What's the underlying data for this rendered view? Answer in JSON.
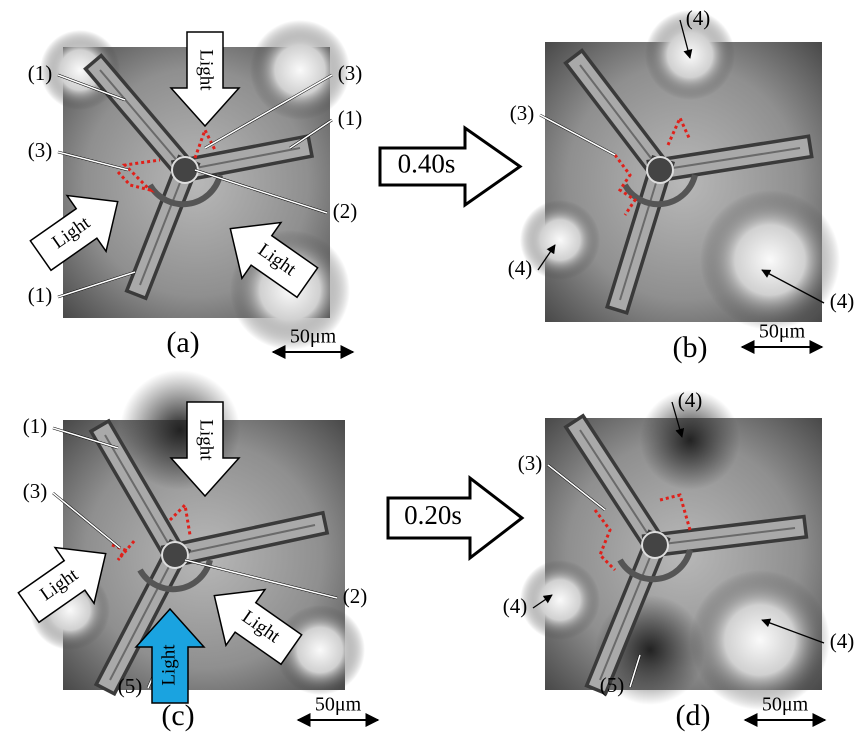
{
  "panels": [
    {
      "label": "(a)",
      "scale_bar": "50μm",
      "callouts": [
        "(1)",
        "(3)",
        "(1)",
        "(3)",
        "(2)",
        "(1)"
      ],
      "arrows": [
        "Light",
        "Light",
        "Light"
      ]
    },
    {
      "label": "(b)",
      "scale_bar": "50μm",
      "callouts": [
        "(4)",
        "(3)",
        "(4)",
        "(4)"
      ]
    },
    {
      "label": "(c)",
      "scale_bar": "50μm",
      "callouts": [
        "(1)",
        "(3)",
        "(2)",
        "(5)"
      ],
      "arrows": [
        "Light",
        "Light",
        "Light",
        "Light"
      ]
    },
    {
      "label": "(d)",
      "scale_bar": "50μm",
      "callouts": [
        "(4)",
        "(3)",
        "(4)",
        "(4)",
        "(5)"
      ]
    }
  ],
  "transitions": [
    "0.40s",
    "0.20s"
  ]
}
